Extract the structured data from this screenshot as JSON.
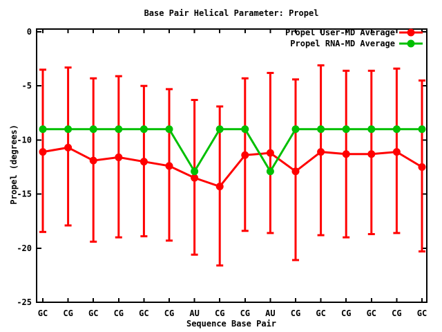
{
  "window": {
    "background": "#ffffff"
  },
  "chart_data": {
    "type": "line",
    "title": "Base Pair Helical Parameter: Propel",
    "xlabel": "Sequence Base Pair",
    "ylabel": "Propel (degrees)",
    "categories": [
      "GC",
      "CG",
      "GC",
      "CG",
      "GC",
      "CG",
      "AU",
      "CG",
      "CG",
      "AU",
      "CG",
      "GC",
      "CG",
      "GC",
      "CG",
      "GC"
    ],
    "ylim": [
      -25,
      0
    ],
    "yticks": [
      0,
      -5,
      -10,
      -15,
      -20,
      -25
    ],
    "grid": false,
    "legend_position": "inside-top-right",
    "series": [
      {
        "name": "Propel User-MD Average",
        "color": "#ff0000",
        "marker": "filled-circle",
        "values": [
          -11.1,
          -10.7,
          -11.9,
          -11.6,
          -12.0,
          -12.4,
          -13.5,
          -14.3,
          -11.4,
          -11.2,
          -12.9,
          -11.1,
          -11.3,
          -11.3,
          -11.1,
          -12.5
        ],
        "error_high": [
          -3.5,
          -3.3,
          -4.3,
          -4.1,
          -5.0,
          -5.3,
          -6.3,
          -6.9,
          -4.3,
          -3.8,
          -4.4,
          -3.1,
          -3.6,
          -3.6,
          -3.4,
          -4.5
        ],
        "error_low": [
          -18.5,
          -17.9,
          -19.4,
          -19.0,
          -18.9,
          -19.3,
          -20.6,
          -21.6,
          -18.4,
          -18.6,
          -21.1,
          -18.8,
          -19.0,
          -18.7,
          -18.6,
          -20.3
        ]
      },
      {
        "name": "Propel RNA-MD Average",
        "color": "#00bf00",
        "marker": "filled-circle",
        "values": [
          -9.0,
          -9.0,
          -9.0,
          -9.0,
          -9.0,
          -9.0,
          -12.9,
          -9.0,
          -9.0,
          -12.9,
          -9.0,
          -9.0,
          -9.0,
          -9.0,
          -9.0,
          -9.0
        ]
      }
    ]
  }
}
